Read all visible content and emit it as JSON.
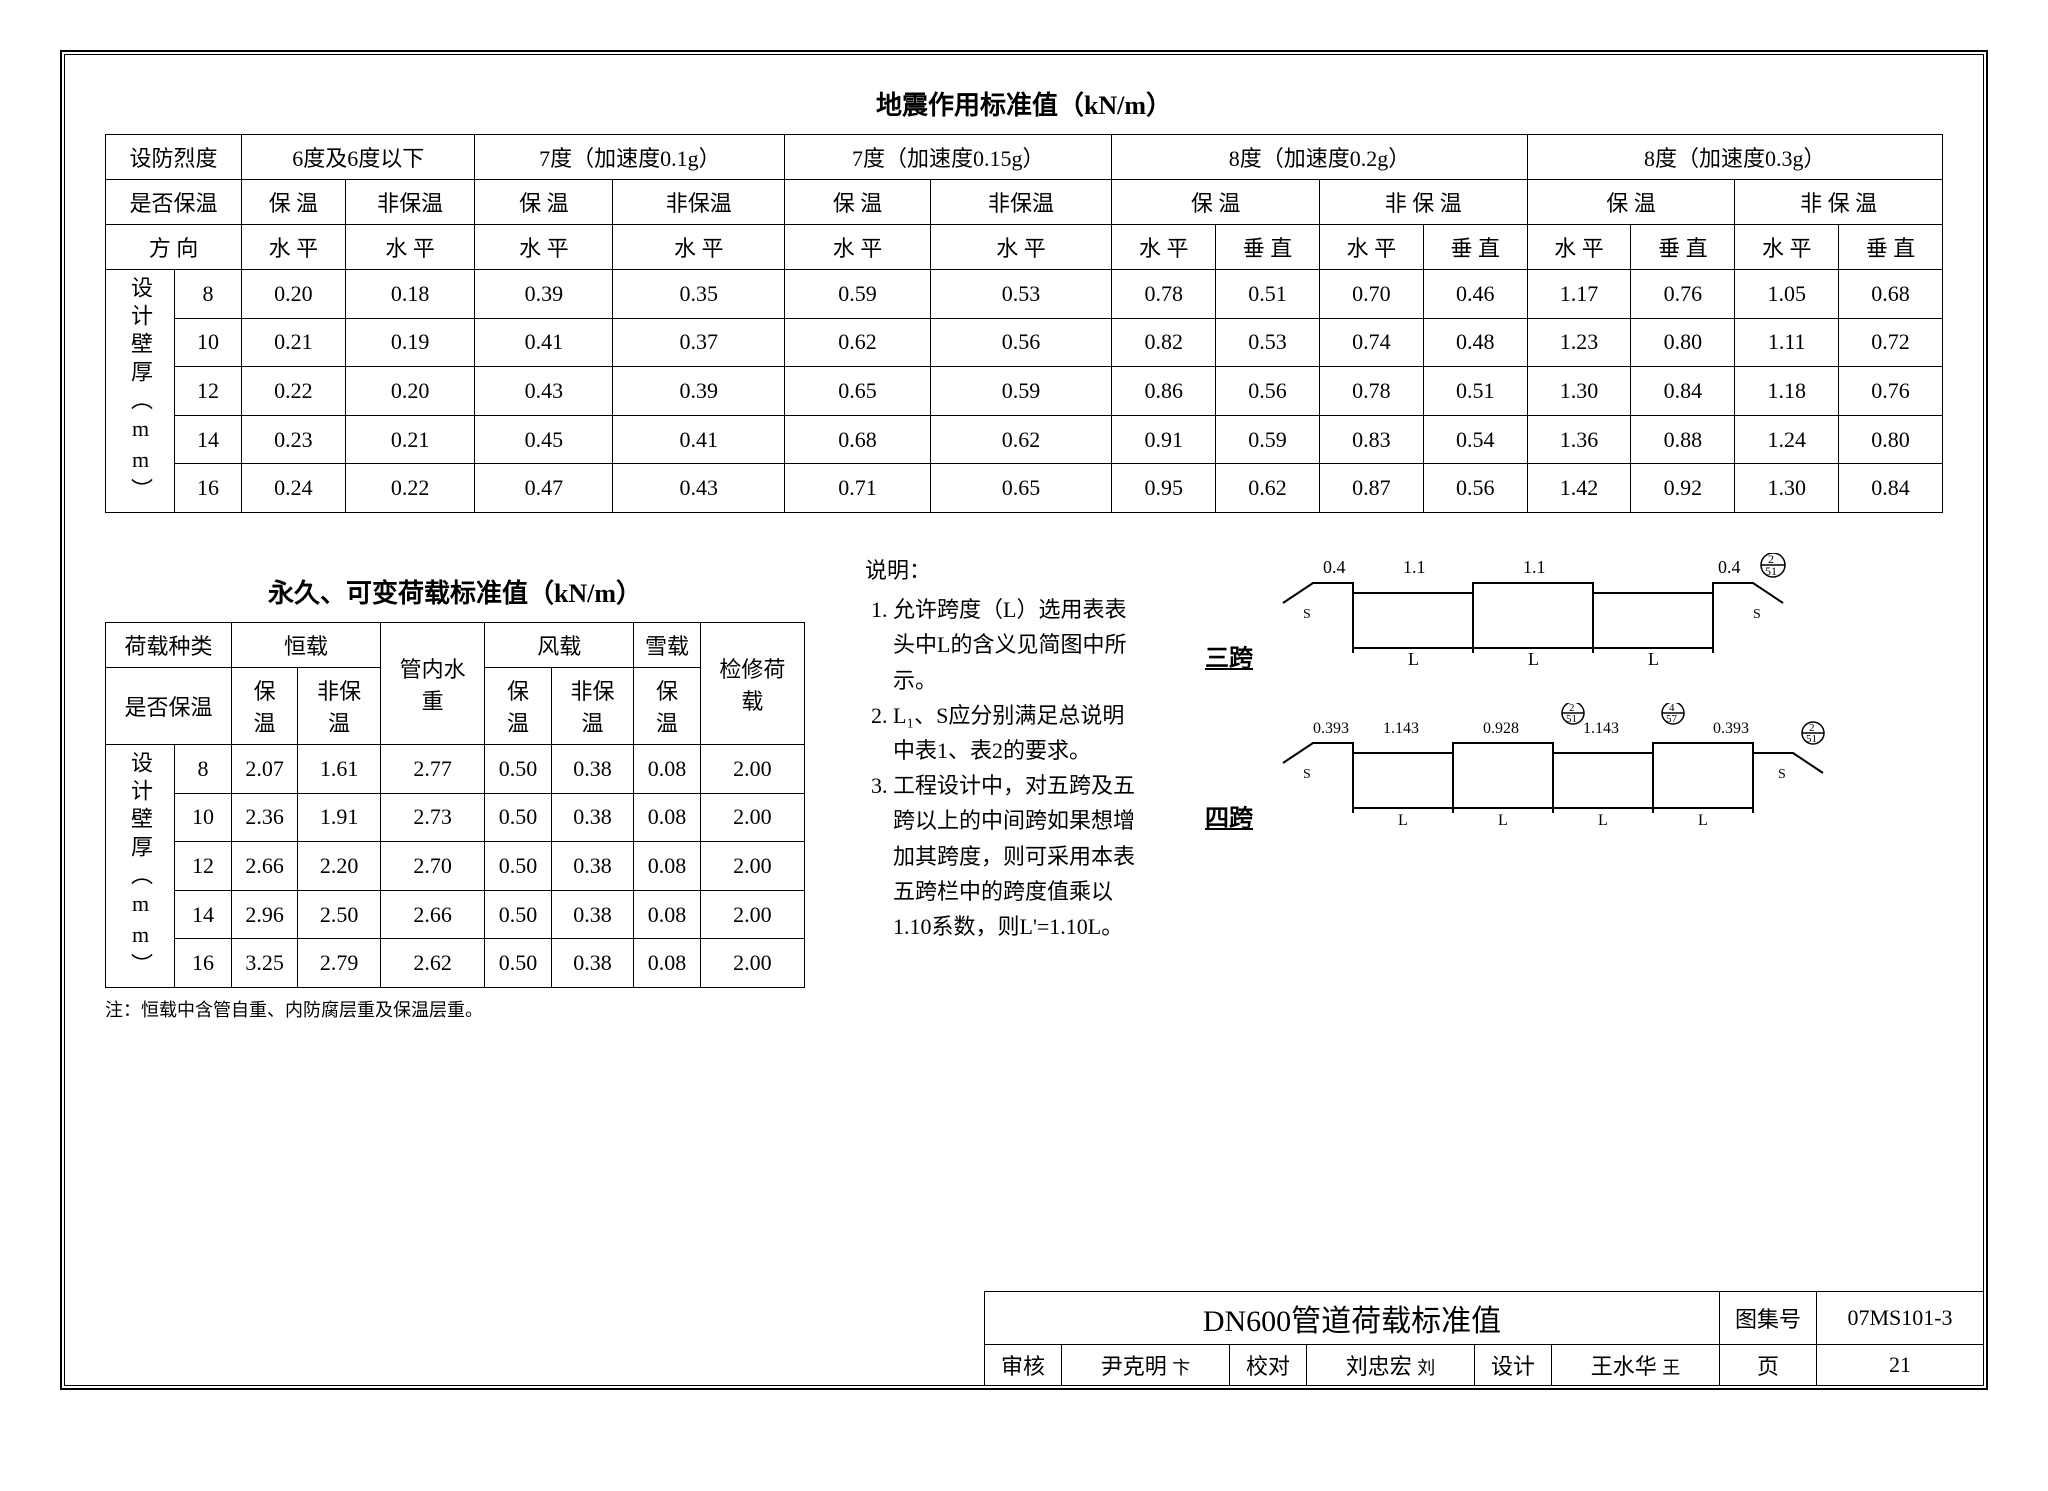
{
  "table1": {
    "title": "地震作用标准值（kN/m）",
    "header_r1": [
      "设防烈度",
      "6度及6度以下",
      "7度（加速度0.1g）",
      "7度（加速度0.15g）",
      "8度（加速度0.2g）",
      "8度（加速度0.3g）"
    ],
    "header_r2_label": "是否保温",
    "header_r2": [
      "保 温",
      "非保温",
      "保 温",
      "非保温",
      "保 温",
      "非保温",
      "保 温",
      "非 保 温",
      "保 温",
      "非 保 温"
    ],
    "header_r3_label": "方 向",
    "header_r3": [
      "水 平",
      "水 平",
      "水 平",
      "水 平",
      "水 平",
      "水 平",
      "水 平",
      "垂 直",
      "水 平",
      "垂 直",
      "水 平",
      "垂 直",
      "水 平",
      "垂 直"
    ],
    "row_group_label": "设计壁厚（mm）",
    "row_labels": [
      "8",
      "10",
      "12",
      "14",
      "16"
    ],
    "rows": [
      [
        "0.20",
        "0.18",
        "0.39",
        "0.35",
        "0.59",
        "0.53",
        "0.78",
        "0.51",
        "0.70",
        "0.46",
        "1.17",
        "0.76",
        "1.05",
        "0.68"
      ],
      [
        "0.21",
        "0.19",
        "0.41",
        "0.37",
        "0.62",
        "0.56",
        "0.82",
        "0.53",
        "0.74",
        "0.48",
        "1.23",
        "0.80",
        "1.11",
        "0.72"
      ],
      [
        "0.22",
        "0.20",
        "0.43",
        "0.39",
        "0.65",
        "0.59",
        "0.86",
        "0.56",
        "0.78",
        "0.51",
        "1.30",
        "0.84",
        "1.18",
        "0.76"
      ],
      [
        "0.23",
        "0.21",
        "0.45",
        "0.41",
        "0.68",
        "0.62",
        "0.91",
        "0.59",
        "0.83",
        "0.54",
        "1.36",
        "0.88",
        "1.24",
        "0.80"
      ],
      [
        "0.24",
        "0.22",
        "0.47",
        "0.43",
        "0.71",
        "0.65",
        "0.95",
        "0.62",
        "0.87",
        "0.56",
        "1.42",
        "0.92",
        "1.30",
        "0.84"
      ]
    ]
  },
  "table2": {
    "title": "永久、可变荷载标准值（kN/m）",
    "header_r1": [
      "荷载种类",
      "恒载",
      "管内水重",
      "风载",
      "雪载",
      "检修荷载"
    ],
    "header_r2_label": "是否保温",
    "header_r2": [
      "保 温",
      "非保温",
      "保 温",
      "非保温",
      "保 温"
    ],
    "row_group_label": "设计壁厚（mm）",
    "row_labels": [
      "8",
      "10",
      "12",
      "14",
      "16"
    ],
    "rows": [
      [
        "2.07",
        "1.61",
        "2.77",
        "0.50",
        "0.38",
        "0.08",
        "2.00"
      ],
      [
        "2.36",
        "1.91",
        "2.73",
        "0.50",
        "0.38",
        "0.08",
        "2.00"
      ],
      [
        "2.66",
        "2.20",
        "2.70",
        "0.50",
        "0.38",
        "0.08",
        "2.00"
      ],
      [
        "2.96",
        "2.50",
        "2.66",
        "0.50",
        "0.38",
        "0.08",
        "2.00"
      ],
      [
        "3.25",
        "2.79",
        "2.62",
        "0.50",
        "0.38",
        "0.08",
        "2.00"
      ]
    ],
    "note": "注：恒载中含管自重、内防腐层重及保温层重。"
  },
  "explain": {
    "heading": "说明：",
    "items": [
      "允许跨度（L）选用表表头中L的含义见简图中所示。",
      "L₁、S应分别满足总说明中表1、表2的要求。",
      "工程设计中，对五跨及五跨以上的中间跨如果想增加其跨度，则可采用本表五跨栏中的跨度值乘以1.10系数，则L'=1.10L。"
    ]
  },
  "diagrams": {
    "span3": {
      "label": "三跨",
      "top_values": [
        "0.4",
        "1.1",
        "1.1",
        "0.4"
      ],
      "ref": "2/51"
    },
    "span4": {
      "label": "四跨",
      "top_values": [
        "0.393",
        "1.143",
        "0.928",
        "1.143",
        "0.393"
      ],
      "refs": [
        "2/51",
        "4/57",
        "2/51"
      ]
    }
  },
  "titleblock": {
    "main_title": "DN600管道荷载标准值",
    "drawing_code_label": "图集号",
    "drawing_code": "07MS101-3",
    "reviewer_label": "审核",
    "reviewer": "尹克明",
    "checker_label": "校对",
    "checker": "刘忠宏",
    "designer_label": "设计",
    "designer": "王水华",
    "page_label": "页",
    "page_no": "21"
  }
}
